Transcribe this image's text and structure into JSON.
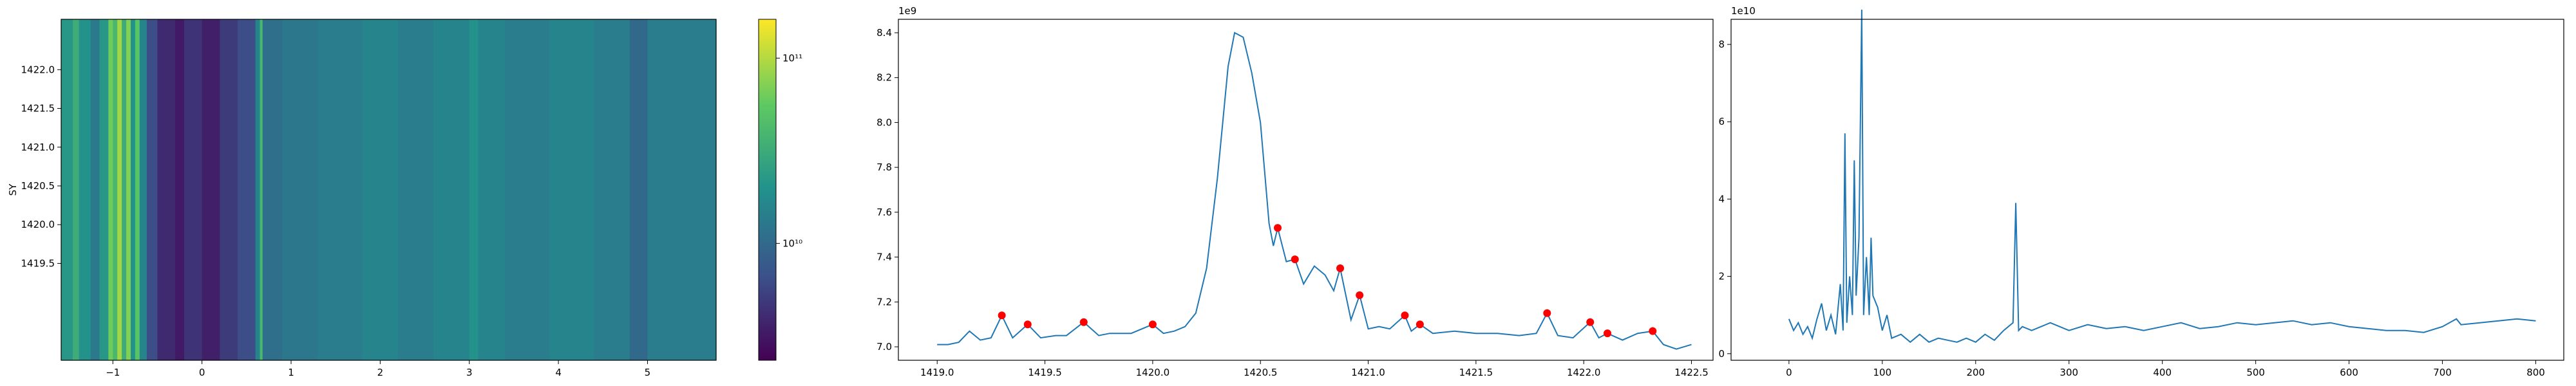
{
  "chart_data": [
    {
      "type": "heatmap",
      "ylabel": "SY",
      "x_edges": [
        -1.58,
        -1.45,
        -1.38,
        -1.25,
        -1.15,
        -1.05,
        -1.0,
        -0.95,
        -0.9,
        -0.85,
        -0.8,
        -0.75,
        -0.7,
        -0.62,
        -0.5,
        -0.3,
        -0.2,
        0.0,
        0.2,
        0.4,
        0.6,
        0.65,
        0.68,
        0.9,
        1.3,
        1.8,
        2.2,
        2.6,
        3.0,
        3.1,
        3.4,
        3.9,
        4.4,
        4.8,
        5.0,
        5.77
      ],
      "values": [
        22000000000.0,
        32000000000.0,
        20000000000.0,
        13000000000.0,
        22000000000.0,
        63000000000.0,
        40000000000.0,
        89000000000.0,
        32000000000.0,
        71000000000.0,
        20000000000.0,
        50000000000.0,
        16000000000.0,
        6300000000.0,
        4000000000.0,
        3200000000.0,
        4500000000.0,
        3500000000.0,
        5000000000.0,
        6300000000.0,
        16000000000.0,
        40000000000.0,
        11000000000.0,
        12500000000.0,
        14000000000.0,
        16000000000.0,
        14000000000.0,
        16000000000.0,
        20000000000.0,
        16000000000.0,
        14000000000.0,
        16000000000.0,
        14000000000.0,
        10000000000.0,
        14000000000.0
      ],
      "xlim": [
        -1.58,
        5.77
      ],
      "xticks": [
        {
          "value": -1,
          "label": "−1"
        },
        0,
        1,
        2,
        3,
        4,
        5
      ],
      "ylim": [
        1418.25,
        1422.65
      ],
      "yticks": [
        1419.5,
        {
          "value": 1420,
          "label": "1420.0"
        },
        1420.5,
        {
          "value": 1421,
          "label": "1421.0"
        },
        1421.5,
        {
          "value": 1422,
          "label": "1422.0"
        }
      ],
      "colormap": "viridis",
      "log_color": true,
      "clim": [
        2340000000.0,
        162000000000.0
      ],
      "cticks": [
        {
          "value": 10000000000.0,
          "label": "10¹⁰"
        },
        {
          "value": 100000000000.0,
          "label": "10¹¹"
        }
      ]
    },
    {
      "type": "line",
      "offset_text": "1e9",
      "series": [
        {
          "color": "#1f77b4",
          "style": "line",
          "x": [
            1419.0,
            1419.05,
            1419.1,
            1419.15,
            1419.2,
            1419.25,
            1419.3,
            1419.35,
            1419.42,
            1419.48,
            1419.55,
            1419.6,
            1419.68,
            1419.75,
            1419.8,
            1419.9,
            1420.0,
            1420.05,
            1420.1,
            1420.15,
            1420.2,
            1420.25,
            1420.3,
            1420.35,
            1420.38,
            1420.42,
            1420.46,
            1420.5,
            1420.54,
            1420.56,
            1420.58,
            1420.62,
            1420.66,
            1420.7,
            1420.75,
            1420.8,
            1420.84,
            1420.87,
            1420.92,
            1420.96,
            1421.0,
            1421.05,
            1421.1,
            1421.17,
            1421.2,
            1421.24,
            1421.3,
            1421.4,
            1421.5,
            1421.6,
            1421.7,
            1421.78,
            1421.83,
            1421.88,
            1421.95,
            1422.03,
            1422.07,
            1422.11,
            1422.18,
            1422.25,
            1422.32,
            1422.37,
            1422.43,
            1422.5
          ],
          "values": [
            7.01,
            7.01,
            7.02,
            7.07,
            7.03,
            7.04,
            7.14,
            7.04,
            7.1,
            7.04,
            7.05,
            7.05,
            7.11,
            7.05,
            7.06,
            7.06,
            7.1,
            7.06,
            7.07,
            7.09,
            7.15,
            7.35,
            7.75,
            8.25,
            8.4,
            8.38,
            8.22,
            8.0,
            7.55,
            7.45,
            7.53,
            7.38,
            7.39,
            7.28,
            7.36,
            7.32,
            7.25,
            7.35,
            7.12,
            7.23,
            7.08,
            7.09,
            7.08,
            7.14,
            7.07,
            7.1,
            7.06,
            7.07,
            7.06,
            7.06,
            7.05,
            7.06,
            7.15,
            7.05,
            7.04,
            7.11,
            7.04,
            7.06,
            7.03,
            7.06,
            7.07,
            7.01,
            6.99,
            7.01
          ]
        },
        {
          "color": "red",
          "style": "markers",
          "x": [
            1419.3,
            1419.42,
            1419.68,
            1420.0,
            1420.58,
            1420.66,
            1420.87,
            1420.96,
            1421.17,
            1421.24,
            1421.83,
            1422.03,
            1422.11,
            1422.32
          ],
          "values": [
            7.14,
            7.1,
            7.11,
            7.1,
            7.53,
            7.39,
            7.35,
            7.23,
            7.14,
            7.1,
            7.15,
            7.11,
            7.06,
            7.07
          ]
        }
      ],
      "xlim": [
        1418.82,
        1422.6
      ],
      "xticks": [
        {
          "value": 1419,
          "label": "1419.0"
        },
        1419.5,
        {
          "value": 1420,
          "label": "1420.0"
        },
        1420.5,
        {
          "value": 1421,
          "label": "1421.0"
        },
        1421.5,
        {
          "value": 1422,
          "label": "1422.0"
        },
        1422.5
      ],
      "ylim": [
        6.94,
        8.46
      ],
      "yticks": [
        {
          "value": 7,
          "label": "7.0"
        },
        7.2,
        7.4,
        7.6,
        7.8,
        {
          "value": 8,
          "label": "8.0"
        },
        8.2,
        8.4
      ]
    },
    {
      "type": "line",
      "offset_text": "1e10",
      "series": [
        {
          "color": "#1f77b4",
          "style": "line",
          "x": [
            0,
            5,
            10,
            15,
            20,
            25,
            30,
            35,
            40,
            45,
            50,
            55,
            58,
            60,
            62,
            65,
            68,
            70,
            72,
            75,
            78,
            80,
            83,
            86,
            88,
            90,
            95,
            100,
            105,
            110,
            120,
            130,
            140,
            150,
            160,
            170,
            180,
            190,
            200,
            210,
            220,
            230,
            240,
            243,
            246,
            250,
            260,
            270,
            280,
            290,
            300,
            320,
            340,
            360,
            380,
            400,
            420,
            440,
            460,
            480,
            500,
            520,
            540,
            560,
            580,
            600,
            620,
            640,
            660,
            680,
            700,
            715,
            720,
            740,
            760,
            780,
            800
          ],
          "values": [
            0.9,
            0.6,
            0.8,
            0.5,
            0.7,
            0.4,
            0.9,
            1.3,
            0.6,
            1.0,
            0.5,
            1.8,
            0.6,
            5.7,
            0.8,
            2.0,
            1.0,
            5.0,
            1.5,
            3.0,
            8.9,
            1.0,
            2.5,
            1.0,
            3.0,
            1.5,
            1.2,
            0.6,
            1.0,
            0.4,
            0.5,
            0.3,
            0.5,
            0.3,
            0.4,
            0.35,
            0.3,
            0.4,
            0.3,
            0.5,
            0.35,
            0.6,
            0.8,
            3.9,
            0.6,
            0.7,
            0.6,
            0.7,
            0.8,
            0.7,
            0.6,
            0.75,
            0.65,
            0.7,
            0.6,
            0.7,
            0.8,
            0.65,
            0.7,
            0.8,
            0.75,
            0.8,
            0.85,
            0.75,
            0.8,
            0.7,
            0.65,
            0.6,
            0.6,
            0.55,
            0.7,
            0.9,
            0.75,
            0.8,
            0.85,
            0.9,
            0.85
          ]
        }
      ],
      "xlim": [
        -62,
        830
      ],
      "xticks": [
        0,
        100,
        200,
        300,
        400,
        500,
        600,
        700,
        800
      ],
      "ylim": [
        -0.17,
        8.65
      ],
      "yticks": [
        0,
        2,
        4,
        6,
        8
      ]
    }
  ]
}
